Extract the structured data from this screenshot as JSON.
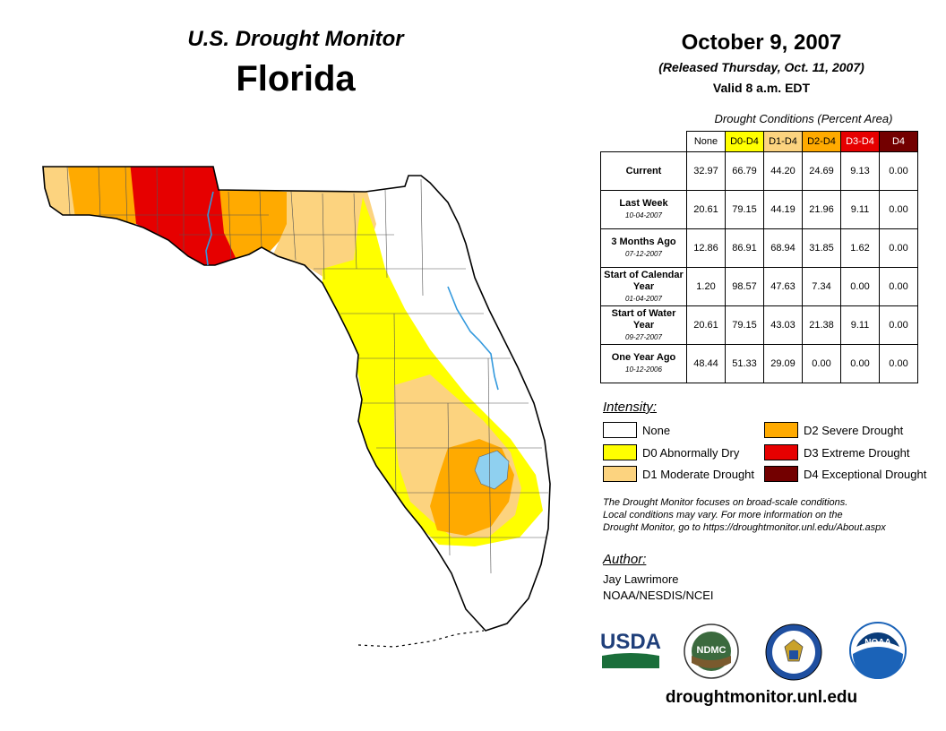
{
  "header": {
    "subtitle": "U.S. Drought Monitor",
    "state": "Florida",
    "date": "October 9, 2007",
    "released": "(Released Thursday, Oct. 11, 2007)",
    "valid": "Valid 8 a.m. EDT"
  },
  "table": {
    "caption": "Drought Conditions (Percent Area)",
    "columns": [
      "None",
      "D0-D4",
      "D1-D4",
      "D2-D4",
      "D3-D4",
      "D4"
    ],
    "rows": [
      {
        "label": "Current",
        "date": "",
        "values": [
          "32.97",
          "66.79",
          "44.20",
          "24.69",
          "9.13",
          "0.00"
        ]
      },
      {
        "label": "Last Week",
        "date": "10-04-2007",
        "values": [
          "20.61",
          "79.15",
          "44.19",
          "21.96",
          "9.11",
          "0.00"
        ]
      },
      {
        "label": "3 Months Ago",
        "date": "07-12-2007",
        "values": [
          "12.86",
          "86.91",
          "68.94",
          "31.85",
          "1.62",
          "0.00"
        ]
      },
      {
        "label": "Start of Calendar Year",
        "date": "01-04-2007",
        "values": [
          "1.20",
          "98.57",
          "47.63",
          "7.34",
          "0.00",
          "0.00"
        ]
      },
      {
        "label": "Start of Water Year",
        "date": "09-27-2007",
        "values": [
          "20.61",
          "79.15",
          "43.03",
          "21.38",
          "9.11",
          "0.00"
        ]
      },
      {
        "label": "One Year Ago",
        "date": "10-12-2006",
        "values": [
          "48.44",
          "51.33",
          "29.09",
          "0.00",
          "0.00",
          "0.00"
        ]
      }
    ]
  },
  "legend": {
    "title": "Intensity:",
    "items": [
      {
        "label": "None",
        "color": "#ffffff"
      },
      {
        "label": "D0 Abnormally Dry",
        "color": "#ffff00"
      },
      {
        "label": "D1 Moderate Drought",
        "color": "#fcd37f"
      },
      {
        "label": "D2 Severe Drought",
        "color": "#ffaa00"
      },
      {
        "label": "D3 Extreme Drought",
        "color": "#e60000"
      },
      {
        "label": "D4 Exceptional Drought",
        "color": "#730000"
      }
    ]
  },
  "note": {
    "line1": "The Drought Monitor focuses on broad-scale conditions.",
    "line2": "Local conditions may vary. For more information on the",
    "line3": "Drought Monitor, go to https://droughtmonitor.unl.edu/About.aspx"
  },
  "author": {
    "title": "Author:",
    "name": "Jay Lawrimore",
    "org": "NOAA/NESDIS/NCEI"
  },
  "logos": {
    "usda": "USDA",
    "ndmc": "NDMC",
    "noaa": "NOAA"
  },
  "website": "droughtmonitor.unl.edu",
  "colors": {
    "none": "#ffffff",
    "d0": "#ffff00",
    "d1": "#fcd37f",
    "d2": "#ffaa00",
    "d3": "#e60000",
    "d4": "#730000",
    "water": "#8fd0f0",
    "river": "#3399dd"
  }
}
